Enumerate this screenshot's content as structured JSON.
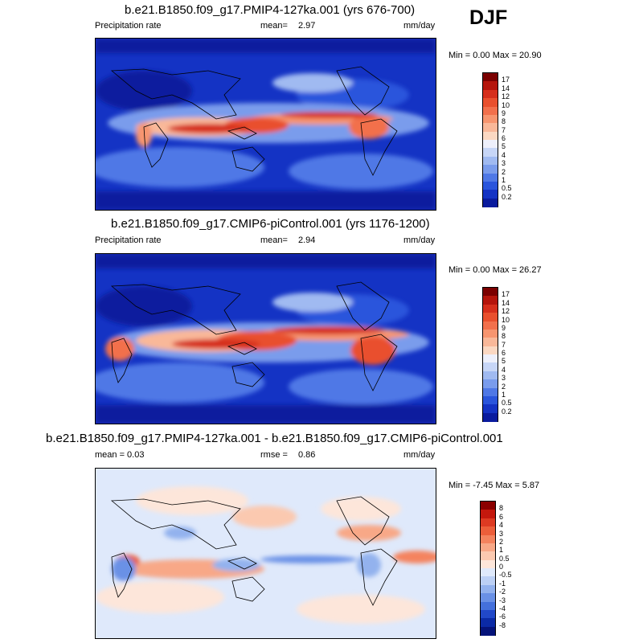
{
  "season_label": "DJF",
  "panels": [
    {
      "id": "top",
      "title": "b.e21.B1850.f09_g17.PMIP4-127ka.001 (yrs 676-700)",
      "left_label": "Precipitation rate",
      "mean_label": "mean=",
      "mean_value": "2.97",
      "units": "mm/day",
      "minmax": "Min =   0.00 Max =  20.90",
      "colorbar_levels": [
        "17",
        "14",
        "12",
        "10",
        "9",
        "8",
        "7",
        "6",
        "5",
        "4",
        "3",
        "2",
        "1",
        "0.5",
        "0.2"
      ],
      "colorbar_colors": [
        "#7b0000",
        "#b5150c",
        "#d62f1c",
        "#e9502e",
        "#f2704c",
        "#f7956f",
        "#f9b899",
        "#fbd8c2",
        "#eef0fb",
        "#c7d6f7",
        "#a0baf1",
        "#7a9cec",
        "#4f78e6",
        "#2a55dc",
        "#1433c4",
        "#0a1b9e"
      ]
    },
    {
      "id": "middle",
      "title": "b.e21.B1850.f09_g17.CMIP6-piControl.001 (yrs 1176-1200)",
      "left_label": "Precipitation rate",
      "mean_label": "mean=",
      "mean_value": "2.94",
      "units": "mm/day",
      "minmax": "Min =   0.00 Max =  26.27",
      "colorbar_levels": [
        "17",
        "14",
        "12",
        "10",
        "9",
        "8",
        "7",
        "6",
        "5",
        "4",
        "3",
        "2",
        "1",
        "0.5",
        "0.2"
      ],
      "colorbar_colors": [
        "#7b0000",
        "#b5150c",
        "#d62f1c",
        "#e9502e",
        "#f2704c",
        "#f7956f",
        "#f9b899",
        "#fbd8c2",
        "#eef0fb",
        "#c7d6f7",
        "#a0baf1",
        "#7a9cec",
        "#4f78e6",
        "#2a55dc",
        "#1433c4",
        "#0a1b9e"
      ]
    },
    {
      "id": "bottom",
      "title": "b.e21.B1850.f09_g17.PMIP4-127ka.001 - b.e21.B1850.f09_g17.CMIP6-piControl.001",
      "left_label": "mean =   0.03",
      "mean_label": "rmse =",
      "mean_value": "0.86",
      "units": "mm/day",
      "minmax": "Min =  -7.45 Max =   5.87",
      "colorbar_levels": [
        "8",
        "6",
        "4",
        "3",
        "2",
        "1",
        "0.5",
        "0",
        "-0.5",
        "-1",
        "-2",
        "-3",
        "-4",
        "-6",
        "-8"
      ],
      "colorbar_colors": [
        "#8b0000",
        "#c4180d",
        "#dd3a22",
        "#ec5e3a",
        "#f4835e",
        "#f8a887",
        "#fbc9b0",
        "#fde6da",
        "#dfe9fb",
        "#bcd0f5",
        "#93b2ee",
        "#6a91e6",
        "#4470dc",
        "#2148c9",
        "#0b2aa6",
        "#05137a"
      ]
    }
  ],
  "chart_data": [
    {
      "type": "heatmap",
      "title": "b.e21.B1850.f09_g17.PMIP4-127ka.001 (yrs 676-700)",
      "variable": "Precipitation rate",
      "season": "DJF",
      "units": "mm/day",
      "mean": 2.97,
      "min": 0.0,
      "max": 20.9,
      "contour_levels": [
        0.2,
        0.5,
        1,
        2,
        3,
        4,
        5,
        6,
        7,
        8,
        9,
        10,
        12,
        14,
        17
      ]
    },
    {
      "type": "heatmap",
      "title": "b.e21.B1850.f09_g17.CMIP6-piControl.001 (yrs 1176-1200)",
      "variable": "Precipitation rate",
      "season": "DJF",
      "units": "mm/day",
      "mean": 2.94,
      "min": 0.0,
      "max": 26.27,
      "contour_levels": [
        0.2,
        0.5,
        1,
        2,
        3,
        4,
        5,
        6,
        7,
        8,
        9,
        10,
        12,
        14,
        17
      ]
    },
    {
      "type": "heatmap",
      "title": "b.e21.B1850.f09_g17.PMIP4-127ka.001 - b.e21.B1850.f09_g17.CMIP6-piControl.001",
      "season": "DJF",
      "units": "mm/day",
      "mean": 0.03,
      "rmse": 0.86,
      "min": -7.45,
      "max": 5.87,
      "contour_levels": [
        -8,
        -6,
        -4,
        -3,
        -2,
        -1,
        -0.5,
        0,
        0.5,
        1,
        2,
        3,
        4,
        6,
        8
      ]
    }
  ]
}
